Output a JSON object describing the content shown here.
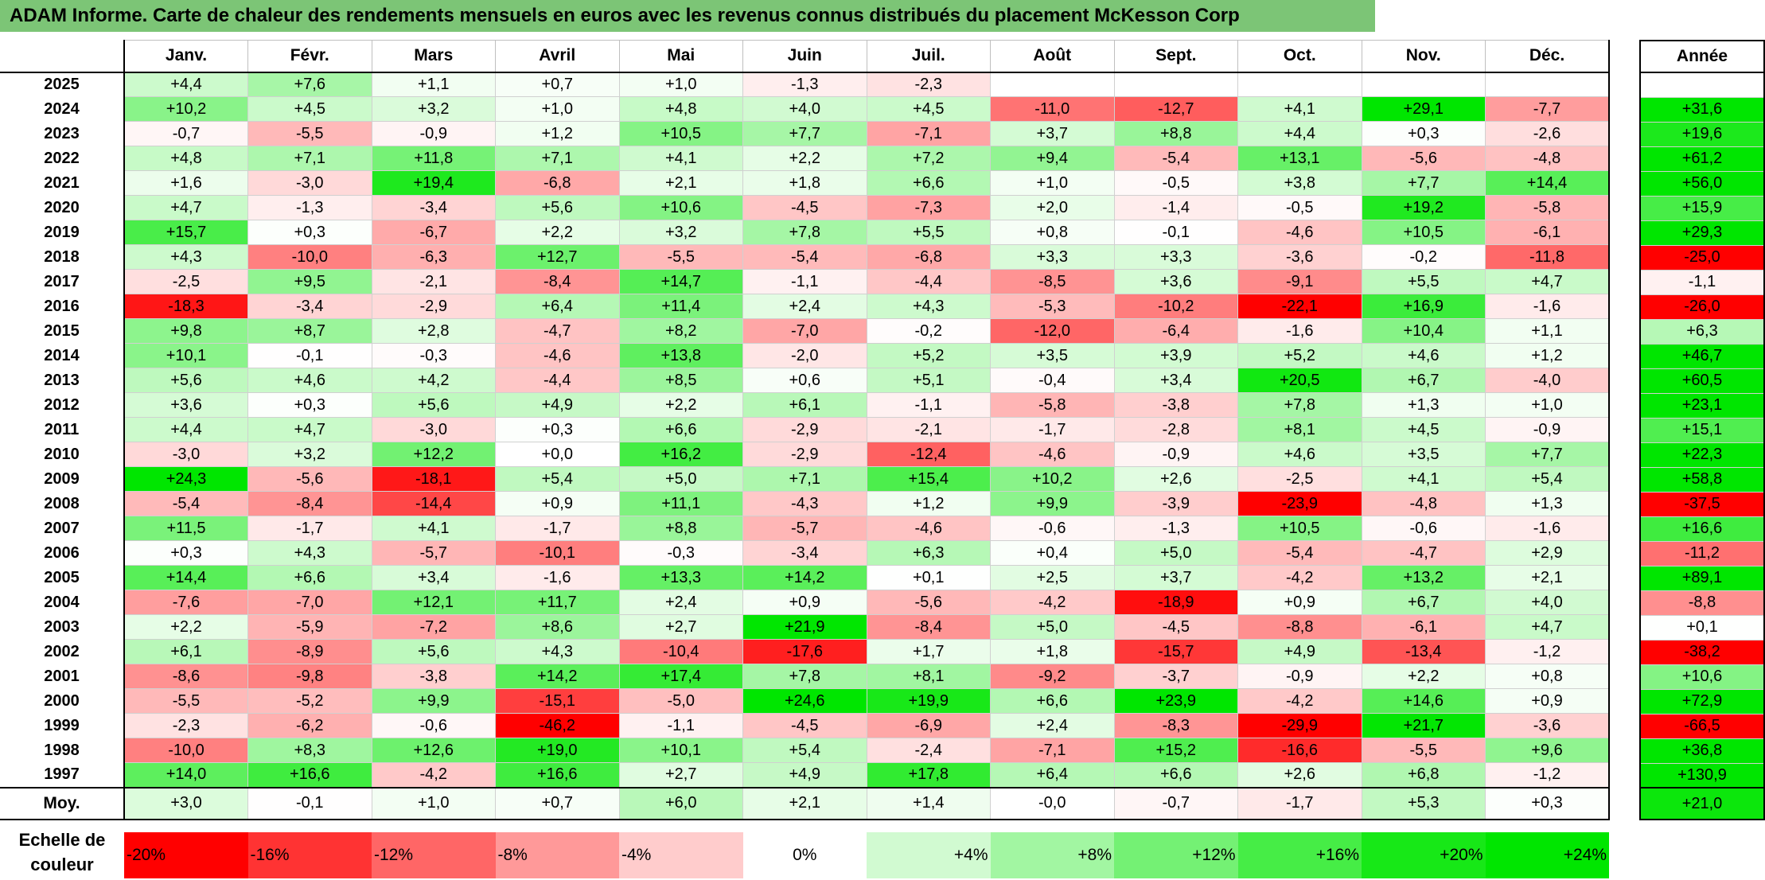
{
  "title": "ADAM Informe. Carte de chaleur des rendements mensuels en euros avec les revenus connus distribués du placement McKesson Corp",
  "chart_data": {
    "type": "heatmap",
    "months": [
      "Janv.",
      "Févr.",
      "Mars",
      "Avril",
      "Mai",
      "Juin",
      "Juil.",
      "Août",
      "Sept.",
      "Oct.",
      "Nov.",
      "Déc."
    ],
    "year_header": "Année",
    "rows": [
      {
        "year": "2025",
        "values": [
          "+4,4",
          "+7,6",
          "+1,1",
          "+0,7",
          "+1,0",
          "-1,3",
          "-2,3",
          "",
          "",
          "",
          "",
          ""
        ],
        "annual": ""
      },
      {
        "year": "2024",
        "values": [
          "+10,2",
          "+4,5",
          "+3,2",
          "+1,0",
          "+4,8",
          "+4,0",
          "+4,5",
          "-11,0",
          "-12,7",
          "+4,1",
          "+29,1",
          "-7,7"
        ],
        "annual": "+31,6"
      },
      {
        "year": "2023",
        "values": [
          "-0,7",
          "-5,5",
          "-0,9",
          "+1,2",
          "+10,5",
          "+7,7",
          "-7,1",
          "+3,7",
          "+8,8",
          "+4,4",
          "+0,3",
          "-2,6"
        ],
        "annual": "+19,6"
      },
      {
        "year": "2022",
        "values": [
          "+4,8",
          "+7,1",
          "+11,8",
          "+7,1",
          "+4,1",
          "+2,2",
          "+7,2",
          "+9,4",
          "-5,4",
          "+13,1",
          "-5,6",
          "-4,8"
        ],
        "annual": "+61,2"
      },
      {
        "year": "2021",
        "values": [
          "+1,6",
          "-3,0",
          "+19,4",
          "-6,8",
          "+2,1",
          "+1,8",
          "+6,6",
          "+1,0",
          "-0,5",
          "+3,8",
          "+7,7",
          "+14,4"
        ],
        "annual": "+56,0"
      },
      {
        "year": "2020",
        "values": [
          "+4,7",
          "-1,3",
          "-3,4",
          "+5,6",
          "+10,6",
          "-4,5",
          "-7,3",
          "+2,0",
          "-1,4",
          "-0,5",
          "+19,2",
          "-5,8"
        ],
        "annual": "+15,9"
      },
      {
        "year": "2019",
        "values": [
          "+15,7",
          "+0,3",
          "-6,7",
          "+2,2",
          "+3,2",
          "+7,8",
          "+5,5",
          "+0,8",
          "-0,1",
          "-4,6",
          "+10,5",
          "-6,1"
        ],
        "annual": "+29,3"
      },
      {
        "year": "2018",
        "values": [
          "+4,3",
          "-10,0",
          "-6,3",
          "+12,7",
          "-5,5",
          "-5,4",
          "-6,8",
          "+3,3",
          "+3,3",
          "-3,6",
          "-0,2",
          "-11,8"
        ],
        "annual": "-25,0"
      },
      {
        "year": "2017",
        "values": [
          "-2,5",
          "+9,5",
          "-2,1",
          "-8,4",
          "+14,7",
          "-1,1",
          "-4,4",
          "-8,5",
          "+3,6",
          "-9,1",
          "+5,5",
          "+4,7"
        ],
        "annual": "-1,1"
      },
      {
        "year": "2016",
        "values": [
          "-18,3",
          "-3,4",
          "-2,9",
          "+6,4",
          "+11,4",
          "+2,4",
          "+4,3",
          "-5,3",
          "-10,2",
          "-22,1",
          "+16,9",
          "-1,6"
        ],
        "annual": "-26,0"
      },
      {
        "year": "2015",
        "values": [
          "+9,8",
          "+8,7",
          "+2,8",
          "-4,7",
          "+8,2",
          "-7,0",
          "-0,2",
          "-12,0",
          "-6,4",
          "-1,6",
          "+10,4",
          "+1,1"
        ],
        "annual": "+6,3"
      },
      {
        "year": "2014",
        "values": [
          "+10,1",
          "-0,1",
          "-0,3",
          "-4,6",
          "+13,8",
          "-2,0",
          "+5,2",
          "+3,5",
          "+3,9",
          "+5,2",
          "+4,6",
          "+1,2"
        ],
        "annual": "+46,7"
      },
      {
        "year": "2013",
        "values": [
          "+5,6",
          "+4,6",
          "+4,2",
          "-4,4",
          "+8,5",
          "+0,6",
          "+5,1",
          "-0,4",
          "+3,4",
          "+20,5",
          "+6,7",
          "-4,0"
        ],
        "annual": "+60,5"
      },
      {
        "year": "2012",
        "values": [
          "+3,6",
          "+0,3",
          "+5,6",
          "+4,9",
          "+2,2",
          "+6,1",
          "-1,1",
          "-5,8",
          "-3,8",
          "+7,8",
          "+1,3",
          "+1,0"
        ],
        "annual": "+23,1"
      },
      {
        "year": "2011",
        "values": [
          "+4,4",
          "+4,7",
          "-3,0",
          "+0,3",
          "+6,6",
          "-2,9",
          "-2,1",
          "-1,7",
          "-2,8",
          "+8,1",
          "+4,5",
          "-0,9"
        ],
        "annual": "+15,1"
      },
      {
        "year": "2010",
        "values": [
          "-3,0",
          "+3,2",
          "+12,2",
          "+0,0",
          "+16,2",
          "-2,9",
          "-12,4",
          "-4,6",
          "-0,9",
          "+4,6",
          "+3,5",
          "+7,7"
        ],
        "annual": "+22,3"
      },
      {
        "year": "2009",
        "values": [
          "+24,3",
          "-5,6",
          "-18,1",
          "+5,4",
          "+5,0",
          "+7,1",
          "+15,4",
          "+10,2",
          "+2,6",
          "-2,5",
          "+4,1",
          "+5,4"
        ],
        "annual": "+58,8"
      },
      {
        "year": "2008",
        "values": [
          "-5,4",
          "-8,4",
          "-14,4",
          "+0,9",
          "+11,1",
          "-4,3",
          "+1,2",
          "+9,9",
          "-3,9",
          "-23,9",
          "-4,8",
          "+1,3"
        ],
        "annual": "-37,5"
      },
      {
        "year": "2007",
        "values": [
          "+11,5",
          "-1,7",
          "+4,1",
          "-1,7",
          "+8,8",
          "-5,7",
          "-4,6",
          "-0,6",
          "-1,3",
          "+10,5",
          "-0,6",
          "-1,6"
        ],
        "annual": "+16,6"
      },
      {
        "year": "2006",
        "values": [
          "+0,3",
          "+4,3",
          "-5,7",
          "-10,1",
          "-0,3",
          "-3,4",
          "+6,3",
          "+0,4",
          "+5,0",
          "-5,4",
          "-4,7",
          "+2,9"
        ],
        "annual": "-11,2"
      },
      {
        "year": "2005",
        "values": [
          "+14,4",
          "+6,6",
          "+3,4",
          "-1,6",
          "+13,3",
          "+14,2",
          "+0,1",
          "+2,5",
          "+3,7",
          "-4,2",
          "+13,2",
          "+2,1"
        ],
        "annual": "+89,1"
      },
      {
        "year": "2004",
        "values": [
          "-7,6",
          "-7,0",
          "+12,1",
          "+11,7",
          "+2,4",
          "+0,9",
          "-5,6",
          "-4,2",
          "-18,9",
          "+0,9",
          "+6,7",
          "+4,0"
        ],
        "annual": "-8,8"
      },
      {
        "year": "2003",
        "values": [
          "+2,2",
          "-5,9",
          "-7,2",
          "+8,6",
          "+2,7",
          "+21,9",
          "-8,4",
          "+5,0",
          "-4,5",
          "-8,8",
          "-6,1",
          "+4,7"
        ],
        "annual": "+0,1"
      },
      {
        "year": "2002",
        "values": [
          "+6,1",
          "-8,9",
          "+5,6",
          "+4,3",
          "-10,4",
          "-17,6",
          "+1,7",
          "+1,8",
          "-15,7",
          "+4,9",
          "-13,4",
          "-1,2"
        ],
        "annual": "-38,2"
      },
      {
        "year": "2001",
        "values": [
          "-8,6",
          "-9,8",
          "-3,8",
          "+14,2",
          "+17,4",
          "+7,8",
          "+8,1",
          "-9,2",
          "-3,7",
          "-0,9",
          "+2,2",
          "+0,8"
        ],
        "annual": "+10,6"
      },
      {
        "year": "2000",
        "values": [
          "-5,5",
          "-5,2",
          "+9,9",
          "-15,1",
          "-5,0",
          "+24,6",
          "+19,9",
          "+6,6",
          "+23,9",
          "-4,2",
          "+14,6",
          "+0,9"
        ],
        "annual": "+72,9"
      },
      {
        "year": "1999",
        "values": [
          "-2,3",
          "-6,2",
          "-0,6",
          "-46,2",
          "-1,1",
          "-4,5",
          "-6,9",
          "+2,4",
          "-8,3",
          "-29,9",
          "+21,7",
          "-3,6"
        ],
        "annual": "-66,5"
      },
      {
        "year": "1998",
        "values": [
          "-10,0",
          "+8,3",
          "+12,6",
          "+19,0",
          "+10,1",
          "+5,4",
          "-2,4",
          "-7,1",
          "+15,2",
          "-16,6",
          "-5,5",
          "+9,6"
        ],
        "annual": "+36,8"
      },
      {
        "year": "1997",
        "values": [
          "+14,0",
          "+16,6",
          "-4,2",
          "+16,6",
          "+2,7",
          "+4,9",
          "+17,8",
          "+6,4",
          "+6,6",
          "+2,6",
          "+6,8",
          "-1,2"
        ],
        "annual": "+130,9"
      }
    ],
    "average": {
      "label": "Moy.",
      "values": [
        "+3,0",
        "-0,1",
        "+1,0",
        "+0,7",
        "+6,0",
        "+2,1",
        "+1,4",
        "-0,0",
        "-0,7",
        "-1,7",
        "+5,3",
        "+0,3"
      ],
      "annual": "+21,0"
    },
    "scale": {
      "label": "Echelle de couleur",
      "steps": [
        {
          "text": "-20%",
          "value": -20
        },
        {
          "text": "-16%",
          "value": -16
        },
        {
          "text": "-12%",
          "value": -12
        },
        {
          "text": "-8%",
          "value": -8
        },
        {
          "text": "-4%",
          "value": -4
        },
        {
          "text": "0%",
          "value": 0
        },
        {
          "text": "+4%",
          "value": 4
        },
        {
          "text": "+8%",
          "value": 8
        },
        {
          "text": "+12%",
          "value": 12
        },
        {
          "text": "+16%",
          "value": 16
        },
        {
          "text": "+20%",
          "value": 20
        },
        {
          "text": "+24%",
          "value": 24
        }
      ]
    },
    "colors": {
      "negative": "#ff0000",
      "neutral": "#ffffff",
      "positive": "#00e600"
    }
  }
}
